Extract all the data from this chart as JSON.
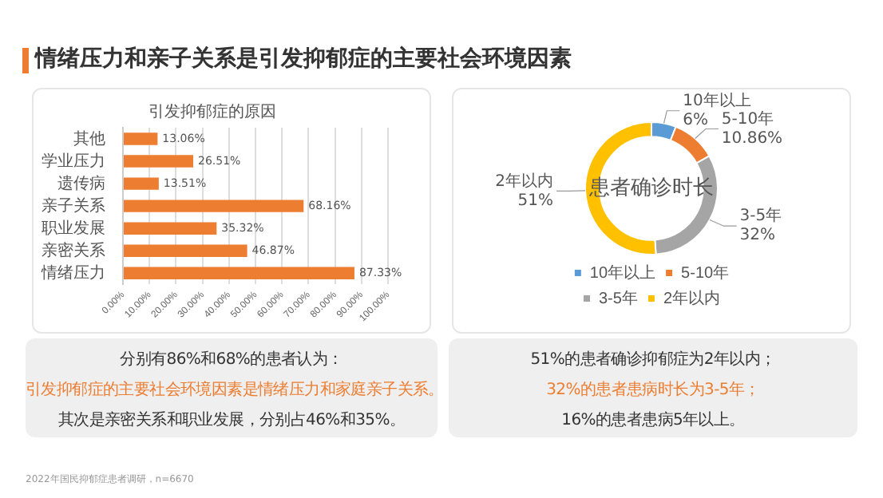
{
  "chart_data": [
    {
      "type": "bar",
      "orientation": "horizontal",
      "title": "情绪压力和亲子关系是引发抑郁症的主要社会环境因素",
      "subtitle": "引发抑郁症的原因",
      "categories": [
        "其他",
        "学业压力",
        "遗传病",
        "亲子关系",
        "职业发展",
        "亲密关系",
        "情绪压力"
      ],
      "values": [
        13.06,
        26.51,
        13.51,
        68.16,
        35.32,
        46.87,
        87.33
      ],
      "value_labels": [
        "13.06%",
        "26.51%",
        "13.51%",
        "68.16%",
        "35.32%",
        "46.87%",
        "87.33%"
      ],
      "color": "#ed7d31",
      "xlim": [
        0,
        100
      ],
      "xticks": [
        {
          "value": 0,
          "label": "0.00%"
        },
        {
          "value": 10,
          "label": "10.00%"
        },
        {
          "value": 20,
          "label": "20.00%"
        },
        {
          "value": 30,
          "label": "30.00%"
        },
        {
          "value": 40,
          "label": "40.00%"
        },
        {
          "value": 50,
          "label": "50.00%"
        },
        {
          "value": 60,
          "label": "60.00%"
        },
        {
          "value": 70,
          "label": "70.00%"
        },
        {
          "value": 80,
          "label": "80.00%"
        },
        {
          "value": 90,
          "label": "90.00%"
        },
        {
          "value": 100,
          "label": "100.00%"
        }
      ],
      "grid": "x",
      "legend": false,
      "annotations": [
        "分别有86%和68%的患者认为：",
        "引发抑郁症的主要社会环境因素是情绪压力和家庭亲子关系。",
        "其次是亲密关系和职业发展，分别占46%和35%。",
        "2022年国民抑郁症患者调研，n=6670"
      ]
    },
    {
      "type": "donut",
      "title": "患者确诊时长",
      "categories": [
        "10年以上",
        "5-10年",
        "3-5年",
        "2年以内"
      ],
      "values": [
        6,
        10.86,
        32,
        51
      ],
      "value_labels": [
        "6%",
        "10.86%",
        "32%",
        "51%"
      ],
      "colors": [
        "#5b9bd5",
        "#ed7d31",
        "#a5a5a5",
        "#ffc000"
      ],
      "legend": "bottom",
      "annotations": [
        "51%的患者确诊抑郁症为2年以内；",
        "32%的患者患病时长为3-5年；",
        "16%的患者患病5年以上。"
      ]
    }
  ]
}
